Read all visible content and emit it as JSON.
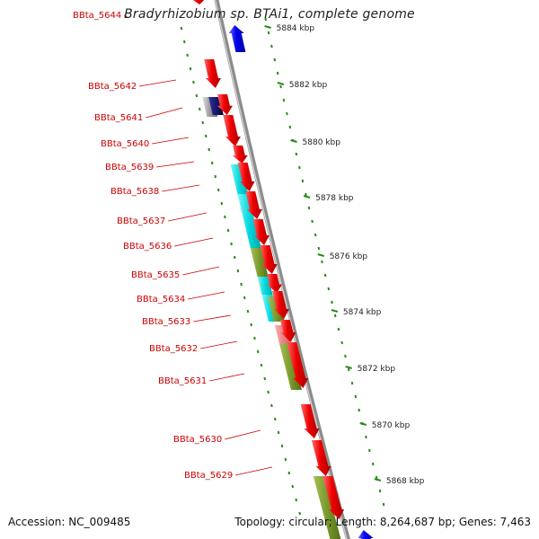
{
  "title": "Bradyrhizobium sp. BTAi1, complete genome",
  "footer": {
    "accession": "Accession: NC_009485",
    "summary": "Topology: circular; Length: 8,264,687 bp; Genes: 7,463"
  },
  "colors": {
    "backbone": "#8c8c8c",
    "forward_cds": "#ee0000",
    "reverse_cds": "#0000ee",
    "label": "#cc0000",
    "tick": "#2a8a1a",
    "feature_cyan": "#00d8dc",
    "feature_olive": "#7a9a2a",
    "feature_pink": "#e88080"
  },
  "ruler_labels": [
    "5884 kbp",
    "5882 kbp",
    "5880 kbp",
    "5878 kbp",
    "5876 kbp",
    "5874 kbp",
    "5872 kbp",
    "5870 kbp",
    "5868 kbp"
  ],
  "gene_labels": [
    "BBta_5644",
    "BBta_5642",
    "BBta_5641",
    "BBta_5640",
    "BBta_5639",
    "BBta_5638",
    "BBta_5637",
    "BBta_5636",
    "BBta_5635",
    "BBta_5634",
    "BBta_5633",
    "BBta_5632",
    "BBta_5631",
    "BBta_5630",
    "BBta_5629"
  ]
}
